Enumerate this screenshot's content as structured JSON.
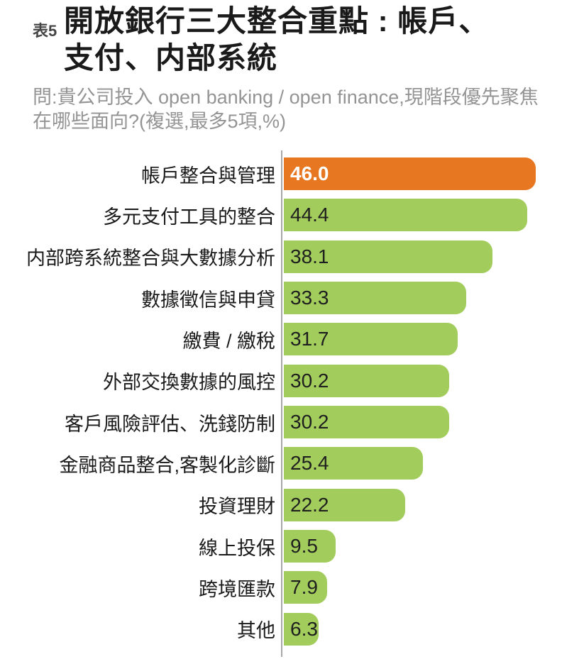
{
  "header": {
    "table_label": "表5",
    "title_line1": "開放銀行三大整合重點 : 帳戶、",
    "title_line2": "支付、内部系統",
    "subtitle": "問:貴公司投入 open banking / open finance,現階段優先聚焦在哪些面向?(複選,最多5項,%)"
  },
  "colors": {
    "highlight_bar": "#E87722",
    "bar": "#A2CD5C",
    "axis_line": "#A8A8A8",
    "title_text": "#1A1A1A",
    "subtitle_text": "#949494",
    "value_dark": "#1F1F1F",
    "value_light": "#FFFFFF"
  },
  "chart_data": {
    "type": "bar",
    "orientation": "horizontal",
    "title": "開放銀行三大整合重點 : 帳戶、支付、内部系統",
    "subtitle": "問:貴公司投入 open banking / open finance,現階段優先聚焦在哪些面向?(複選,最多5項,%)",
    "unit": "%",
    "xlim": [
      0,
      47
    ],
    "grid": false,
    "legend": false,
    "highlight_index": 0,
    "categories": [
      "帳戶整合與管理",
      "多元支付工具的整合",
      "内部跨系統整合與大數據分析",
      "數據徵信與申貸",
      "繳費 / 繳稅",
      "外部交換數據的風控",
      "客戶風險評估、洗錢防制",
      "金融商品整合,客製化診斷",
      "投資理財",
      "線上投保",
      "跨境匯款",
      "其他"
    ],
    "values": [
      46.0,
      44.4,
      38.1,
      33.3,
      31.7,
      30.2,
      30.2,
      25.4,
      22.2,
      9.5,
      7.9,
      6.3
    ],
    "value_labels": [
      "46.0",
      "44.4",
      "38.1",
      "33.3",
      "31.7",
      "30.2",
      "30.2",
      "25.4",
      "22.2",
      "9.5",
      "7.9",
      "6.3"
    ]
  }
}
